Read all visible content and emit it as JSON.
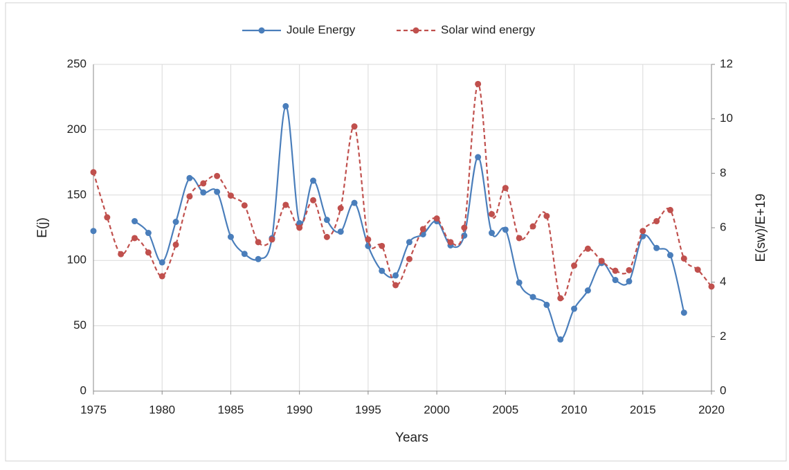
{
  "chart_data": {
    "type": "line",
    "x": [
      1975,
      1976,
      1977,
      1978,
      1979,
      1980,
      1981,
      1982,
      1983,
      1984,
      1985,
      1986,
      1987,
      1988,
      1989,
      1990,
      1991,
      1992,
      1993,
      1994,
      1995,
      1996,
      1997,
      1998,
      1999,
      2000,
      2001,
      2002,
      2003,
      2004,
      2005,
      2006,
      2007,
      2008,
      2009,
      2010,
      2011,
      2012,
      2013,
      2014,
      2015,
      2016,
      2017,
      2018,
      2019,
      2020
    ],
    "series": [
      {
        "name": "Joule Energy",
        "color": "#4a7ebb",
        "dash": false,
        "values": [
          122.5,
          null,
          null,
          130,
          121,
          98.5,
          129.5,
          163,
          152,
          152.5,
          118,
          105,
          101,
          117,
          218,
          128.5,
          161,
          131,
          122,
          144,
          111,
          92,
          88.5,
          114,
          120,
          130,
          111.5,
          119,
          179,
          121,
          123.5,
          83,
          72,
          66,
          39.5,
          63,
          77,
          98,
          85,
          84,
          118.5,
          109.5,
          104,
          60,
          null,
          null
        ]
      },
      {
        "name": "Solar wind energy",
        "color": "#c0504d",
        "dash": true,
        "axis": "y2",
        "values": [
          8.04,
          6.38,
          5.03,
          5.62,
          5.09,
          4.22,
          5.38,
          7.15,
          7.63,
          7.9,
          7.18,
          6.82,
          5.47,
          5.57,
          6.84,
          6.0,
          7.01,
          5.66,
          6.72,
          9.72,
          5.57,
          5.33,
          3.89,
          4.85,
          5.95,
          6.34,
          5.47,
          6.0,
          11.28,
          6.5,
          7.46,
          5.62,
          6.05,
          6.43,
          3.41,
          4.61,
          5.23,
          4.78,
          4.42,
          4.44,
          5.88,
          6.24,
          6.65,
          4.87,
          4.46,
          3.84
        ]
      }
    ],
    "xlabel": "Years",
    "ylabel": "E(j)",
    "y2label": "E(sw)/E+19",
    "xlim": [
      1975,
      2020
    ],
    "xticks": [
      1975,
      1980,
      1985,
      1990,
      1995,
      2000,
      2005,
      2010,
      2015,
      2020
    ],
    "ylim": [
      0,
      250
    ],
    "yticks": [
      0,
      50,
      100,
      150,
      200,
      250
    ],
    "y2lim": [
      0,
      12
    ],
    "y2ticks": [
      0,
      2,
      4,
      6,
      8,
      10,
      12
    ],
    "grid": true,
    "legend": "top"
  }
}
